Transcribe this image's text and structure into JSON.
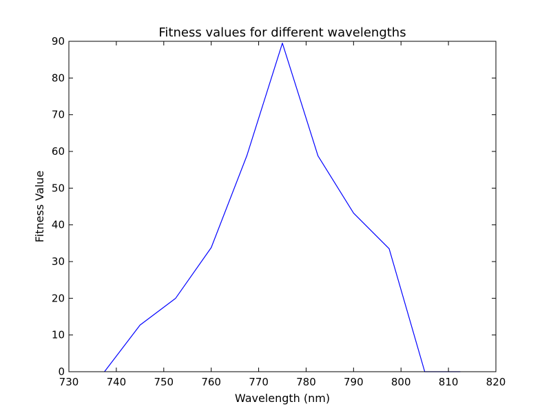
{
  "chart_data": {
    "type": "line",
    "title": "Fitness values for different wavelengths",
    "xlabel": "Wavelength (nm)",
    "ylabel": "Fitness Value",
    "xlim": [
      730,
      820
    ],
    "ylim": [
      0,
      90
    ],
    "xticks": [
      730,
      740,
      750,
      760,
      770,
      780,
      790,
      800,
      810,
      820
    ],
    "yticks": [
      0,
      10,
      20,
      30,
      40,
      50,
      60,
      70,
      80,
      90
    ],
    "grid": false,
    "line_color": "#0000ff",
    "series": [
      {
        "x": [
          737.5,
          745.0,
          752.5,
          760.0,
          767.5,
          775.0,
          782.5,
          790.0,
          797.5,
          805.0,
          812.5
        ],
        "values": [
          0,
          12.7,
          20.0,
          33.8,
          58.8,
          89.5,
          58.8,
          43.2,
          33.5,
          0,
          0
        ]
      }
    ]
  }
}
